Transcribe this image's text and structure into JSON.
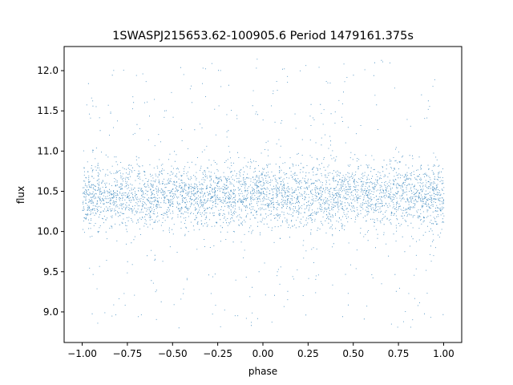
{
  "chart_data": {
    "type": "scatter",
    "title": "1SWASPJ215653.62-100905.6 Period 1479161.375s",
    "xlabel": "phase",
    "ylabel": "flux",
    "xlim": [
      -1.1,
      1.1
    ],
    "ylim": [
      8.62,
      12.3
    ],
    "x_ticks": [
      -1.0,
      -0.75,
      -0.5,
      -0.25,
      0.0,
      0.25,
      0.5,
      0.75,
      1.0
    ],
    "x_tick_labels": [
      "−1.00",
      "−0.75",
      "−0.50",
      "−0.25",
      "0.00",
      "0.25",
      "0.50",
      "0.75",
      "1.00"
    ],
    "y_ticks": [
      9.0,
      9.5,
      10.0,
      10.5,
      11.0,
      11.5,
      12.0
    ],
    "y_tick_labels": [
      "9.0",
      "9.5",
      "10.0",
      "10.5",
      "11.0",
      "11.5",
      "12.0"
    ],
    "grid": false,
    "legend": "none",
    "marker_color": "#1f77b4",
    "series": [
      {
        "x_range": [
          -1.0,
          1.0
        ],
        "y_center": 10.45,
        "y_core_spread": [
          10.05,
          10.85
        ],
        "y_outlier_range": [
          8.8,
          12.15
        ],
        "approx_point_count": 40000,
        "mirrored_about_phase_zero": true
      }
    ]
  }
}
